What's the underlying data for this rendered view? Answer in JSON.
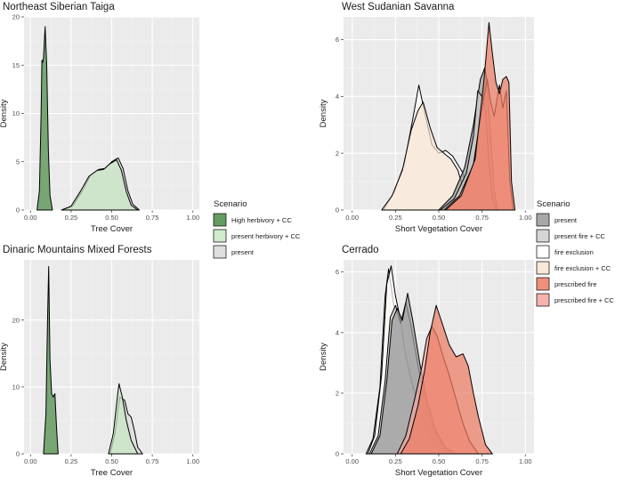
{
  "chart_data": [
    {
      "type": "area",
      "title": "Northeast Siberian Taiga",
      "xlabel": "Tree Cover",
      "ylabel": "Density",
      "xlim": [
        -0.04,
        1.04
      ],
      "ylim": [
        0,
        20
      ],
      "xticks": [
        "0.00",
        "0.25",
        "0.50",
        "0.75",
        "1.00"
      ],
      "yticks": [
        "0",
        "5",
        "10",
        "15",
        "20"
      ],
      "grid": true,
      "legend_position": "right",
      "series": [
        {
          "name": "present",
          "fill": "#d9d9d9",
          "points": [
            [
              0.2,
              0
            ],
            [
              0.26,
              0.4
            ],
            [
              0.32,
              2.0
            ],
            [
              0.37,
              3.6
            ],
            [
              0.42,
              4.2
            ],
            [
              0.46,
              4.3
            ],
            [
              0.5,
              5.0
            ],
            [
              0.54,
              5.4
            ],
            [
              0.57,
              4.3
            ],
            [
              0.6,
              2.0
            ],
            [
              0.63,
              0.6
            ],
            [
              0.67,
              0
            ]
          ]
        },
        {
          "name": "present herbivory + CC",
          "fill": "#c9e7c4",
          "points": [
            [
              0.19,
              0
            ],
            [
              0.25,
              0.4
            ],
            [
              0.31,
              2.0
            ],
            [
              0.36,
              3.5
            ],
            [
              0.41,
              4.1
            ],
            [
              0.45,
              4.2
            ],
            [
              0.49,
              4.8
            ],
            [
              0.53,
              5.2
            ],
            [
              0.56,
              4.1
            ],
            [
              0.59,
              1.9
            ],
            [
              0.62,
              0.5
            ],
            [
              0.66,
              0
            ]
          ]
        },
        {
          "name": "High herbivory + CC",
          "fill": "#4a8b45",
          "points": [
            [
              0.04,
              0
            ],
            [
              0.055,
              2
            ],
            [
              0.065,
              10
            ],
            [
              0.07,
              15.5
            ],
            [
              0.075,
              15.3
            ],
            [
              0.08,
              15.8
            ],
            [
              0.09,
              19.0
            ],
            [
              0.1,
              15
            ],
            [
              0.11,
              6
            ],
            [
              0.12,
              1.5
            ],
            [
              0.135,
              0
            ]
          ]
        }
      ]
    },
    {
      "type": "area",
      "title": "Dinaric Mountains Mixed Forests",
      "xlabel": "Tree Cover",
      "ylabel": "Density",
      "xlim": [
        -0.04,
        1.04
      ],
      "ylim": [
        0,
        29
      ],
      "xticks": [
        "0.00",
        "0.25",
        "0.50",
        "0.75",
        "1.00"
      ],
      "yticks": [
        "0",
        "10",
        "20"
      ],
      "grid": true,
      "legend_position": "right",
      "series": [
        {
          "name": "present",
          "fill": "#d9d9d9",
          "points": [
            [
              0.49,
              0
            ],
            [
              0.52,
              3
            ],
            [
              0.55,
              8.5
            ],
            [
              0.58,
              8.0
            ],
            [
              0.6,
              6.0
            ],
            [
              0.62,
              5.5
            ],
            [
              0.64,
              3.5
            ],
            [
              0.66,
              1.0
            ],
            [
              0.69,
              0
            ]
          ]
        },
        {
          "name": "present herbivory + CC",
          "fill": "#c9e7c4",
          "points": [
            [
              0.48,
              0
            ],
            [
              0.51,
              3
            ],
            [
              0.535,
              8.5
            ],
            [
              0.545,
              10.5
            ],
            [
              0.565,
              8.5
            ],
            [
              0.59,
              5.0
            ],
            [
              0.62,
              2.0
            ],
            [
              0.66,
              0
            ]
          ]
        },
        {
          "name": "High herbivory + CC",
          "fill": "#4a8b45",
          "points": [
            [
              0.08,
              0
            ],
            [
              0.095,
              6
            ],
            [
              0.105,
              20
            ],
            [
              0.112,
              28
            ],
            [
              0.12,
              14
            ],
            [
              0.13,
              9
            ],
            [
              0.14,
              8.5
            ],
            [
              0.15,
              9
            ],
            [
              0.16,
              4
            ],
            [
              0.17,
              0
            ]
          ]
        }
      ]
    },
    {
      "type": "area",
      "title": "West Sudanian Savanna",
      "xlabel": "Short Vegetation Cover",
      "ylabel": "Density",
      "xlim": [
        -0.05,
        1.05
      ],
      "ylim": [
        0,
        6.8
      ],
      "xticks": [
        "0.00",
        "0.25",
        "0.50",
        "0.75",
        "1.00"
      ],
      "yticks": [
        "0",
        "2",
        "4",
        "6"
      ],
      "grid": true,
      "legend_position": "right",
      "series": [
        {
          "name": "fire exclusion",
          "fill": "#ffffff",
          "points": [
            [
              0.18,
              0
            ],
            [
              0.24,
              0.6
            ],
            [
              0.3,
              1.6
            ],
            [
              0.35,
              3.2
            ],
            [
              0.385,
              4.4
            ],
            [
              0.42,
              3.4
            ],
            [
              0.46,
              2.3
            ],
            [
              0.5,
              2.0
            ],
            [
              0.54,
              2.1
            ],
            [
              0.58,
              1.9
            ],
            [
              0.62,
              1.5
            ],
            [
              0.64,
              1.3
            ],
            [
              0.67,
              0.4
            ],
            [
              0.7,
              0
            ]
          ]
        },
        {
          "name": "fire exclusion + CC",
          "fill": "#f7e4d1",
          "points": [
            [
              0.17,
              0
            ],
            [
              0.23,
              0.5
            ],
            [
              0.29,
              1.4
            ],
            [
              0.34,
              2.8
            ],
            [
              0.38,
              3.5
            ],
            [
              0.41,
              3.8
            ],
            [
              0.45,
              2.9
            ],
            [
              0.49,
              2.2
            ],
            [
              0.53,
              2.0
            ],
            [
              0.57,
              1.8
            ],
            [
              0.61,
              1.4
            ],
            [
              0.64,
              0.8
            ],
            [
              0.67,
              0
            ]
          ]
        },
        {
          "name": "present",
          "fill": "#999999",
          "points": [
            [
              0.5,
              0
            ],
            [
              0.58,
              0.5
            ],
            [
              0.65,
              1.5
            ],
            [
              0.7,
              3.0
            ],
            [
              0.74,
              4.6
            ],
            [
              0.765,
              5.0
            ],
            [
              0.78,
              4.5
            ],
            [
              0.8,
              2.5
            ],
            [
              0.82,
              0.7
            ],
            [
              0.84,
              0
            ]
          ]
        },
        {
          "name": "present fire + CC",
          "fill": "#cfcfcf",
          "points": [
            [
              0.51,
              0
            ],
            [
              0.59,
              0.4
            ],
            [
              0.66,
              1.3
            ],
            [
              0.7,
              2.6
            ],
            [
              0.725,
              4.2
            ],
            [
              0.75,
              4.0
            ],
            [
              0.77,
              3.5
            ],
            [
              0.79,
              1.6
            ],
            [
              0.81,
              0.4
            ],
            [
              0.83,
              0
            ]
          ]
        },
        {
          "name": "prescribed fire + CC",
          "fill": "#f4a6a0",
          "points": [
            [
              0.53,
              0
            ],
            [
              0.62,
              0.5
            ],
            [
              0.7,
              1.6
            ],
            [
              0.75,
              3.6
            ],
            [
              0.78,
              4.6
            ],
            [
              0.8,
              3.8
            ],
            [
              0.82,
              3.3
            ],
            [
              0.85,
              4.4
            ],
            [
              0.87,
              3.6
            ],
            [
              0.89,
              4.2
            ],
            [
              0.91,
              1.0
            ],
            [
              0.93,
              0
            ]
          ]
        },
        {
          "name": "prescribed fire",
          "fill": "#ec7c63",
          "points": [
            [
              0.54,
              0
            ],
            [
              0.63,
              0.5
            ],
            [
              0.71,
              1.8
            ],
            [
              0.76,
              4.5
            ],
            [
              0.79,
              6.6
            ],
            [
              0.81,
              5.5
            ],
            [
              0.83,
              4.5
            ],
            [
              0.85,
              4.1
            ],
            [
              0.87,
              4.6
            ],
            [
              0.89,
              4.7
            ],
            [
              0.905,
              4.5
            ],
            [
              0.92,
              1.0
            ],
            [
              0.94,
              0
            ]
          ]
        }
      ]
    },
    {
      "type": "area",
      "title": "Cerrado",
      "xlabel": "Short Vegetation Cover",
      "ylabel": "Density",
      "xlim": [
        -0.05,
        1.05
      ],
      "ylim": [
        0,
        6.4
      ],
      "xticks": [
        "0.00",
        "0.25",
        "0.50",
        "0.75",
        "1.00"
      ],
      "yticks": [
        "0",
        "2",
        "4",
        "6"
      ],
      "grid": true,
      "legend_position": "right",
      "series": [
        {
          "name": "fire exclusion + CC",
          "fill": "#f7e4d1",
          "points": [
            [
              0.08,
              0
            ],
            [
              0.12,
              0.5
            ],
            [
              0.16,
              2.2
            ],
            [
              0.19,
              5.2
            ],
            [
              0.21,
              6.1
            ],
            [
              0.24,
              4.9
            ],
            [
              0.27,
              4.4
            ],
            [
              0.3,
              3.5
            ],
            [
              0.34,
              2.5
            ],
            [
              0.38,
              1.6
            ],
            [
              0.43,
              0.8
            ],
            [
              0.48,
              0.3
            ],
            [
              0.54,
              0
            ]
          ]
        },
        {
          "name": "fire exclusion",
          "fill": "#ffffff",
          "points": [
            [
              0.09,
              0
            ],
            [
              0.13,
              0.6
            ],
            [
              0.17,
              2.6
            ],
            [
              0.2,
              5.6
            ],
            [
              0.225,
              6.2
            ],
            [
              0.25,
              5.2
            ],
            [
              0.28,
              4.4
            ],
            [
              0.31,
              3.2
            ],
            [
              0.35,
              2.2
            ],
            [
              0.39,
              1.4
            ],
            [
              0.44,
              0.7
            ],
            [
              0.49,
              0.25
            ],
            [
              0.55,
              0
            ]
          ]
        },
        {
          "name": "present fire + CC",
          "fill": "#cfcfcf",
          "points": [
            [
              0.1,
              0
            ],
            [
              0.15,
              0.6
            ],
            [
              0.19,
              2.4
            ],
            [
              0.22,
              4.5
            ],
            [
              0.25,
              4.9
            ],
            [
              0.28,
              4.3
            ],
            [
              0.31,
              5.0
            ],
            [
              0.34,
              4.2
            ],
            [
              0.38,
              2.9
            ],
            [
              0.42,
              1.8
            ],
            [
              0.47,
              0.8
            ],
            [
              0.53,
              0.2
            ],
            [
              0.58,
              0
            ]
          ]
        },
        {
          "name": "present",
          "fill": "#999999",
          "points": [
            [
              0.11,
              0
            ],
            [
              0.16,
              0.6
            ],
            [
              0.2,
              2.4
            ],
            [
              0.23,
              4.4
            ],
            [
              0.26,
              4.8
            ],
            [
              0.29,
              4.4
            ],
            [
              0.32,
              5.3
            ],
            [
              0.35,
              4.4
            ],
            [
              0.39,
              3.0
            ],
            [
              0.43,
              1.8
            ],
            [
              0.48,
              0.8
            ],
            [
              0.54,
              0.2
            ],
            [
              0.6,
              0
            ]
          ]
        },
        {
          "name": "prescribed fire + CC",
          "fill": "#f4a6a0",
          "points": [
            [
              0.26,
              0
            ],
            [
              0.31,
              0.6
            ],
            [
              0.36,
              1.8
            ],
            [
              0.4,
              2.8
            ],
            [
              0.43,
              3.8
            ],
            [
              0.46,
              4.2
            ],
            [
              0.49,
              3.9
            ],
            [
              0.52,
              3.3
            ],
            [
              0.56,
              2.6
            ],
            [
              0.6,
              1.8
            ],
            [
              0.64,
              1.0
            ],
            [
              0.68,
              0.4
            ],
            [
              0.73,
              0
            ]
          ]
        },
        {
          "name": "prescribed fire",
          "fill": "#ec7c63",
          "points": [
            [
              0.28,
              0
            ],
            [
              0.33,
              0.5
            ],
            [
              0.38,
              1.6
            ],
            [
              0.42,
              2.8
            ],
            [
              0.45,
              4.0
            ],
            [
              0.485,
              4.9
            ],
            [
              0.52,
              4.3
            ],
            [
              0.56,
              3.6
            ],
            [
              0.6,
              3.2
            ],
            [
              0.64,
              3.3
            ],
            [
              0.67,
              2.9
            ],
            [
              0.7,
              2.0
            ],
            [
              0.73,
              1.2
            ],
            [
              0.77,
              0.3
            ],
            [
              0.81,
              0
            ]
          ]
        }
      ]
    }
  ],
  "legends": [
    {
      "title": "Scenario",
      "items": [
        {
          "label": "High herbivory + CC",
          "color": "#4a8b45"
        },
        {
          "label": "present herbivory + CC",
          "color": "#c9e7c4"
        },
        {
          "label": "present",
          "color": "#d9d9d9"
        }
      ]
    },
    {
      "title": "Scenario",
      "items": [
        {
          "label": "present",
          "color": "#999999"
        },
        {
          "label": "present fire + CC",
          "color": "#cfcfcf"
        },
        {
          "label": "fire exclusion",
          "color": "#ffffff"
        },
        {
          "label": "fire exclusion + CC",
          "color": "#f7e4d1"
        },
        {
          "label": "prescribed fire",
          "color": "#ec7c63"
        },
        {
          "label": "prescribed fire + CC",
          "color": "#f4a6a0"
        }
      ]
    }
  ]
}
